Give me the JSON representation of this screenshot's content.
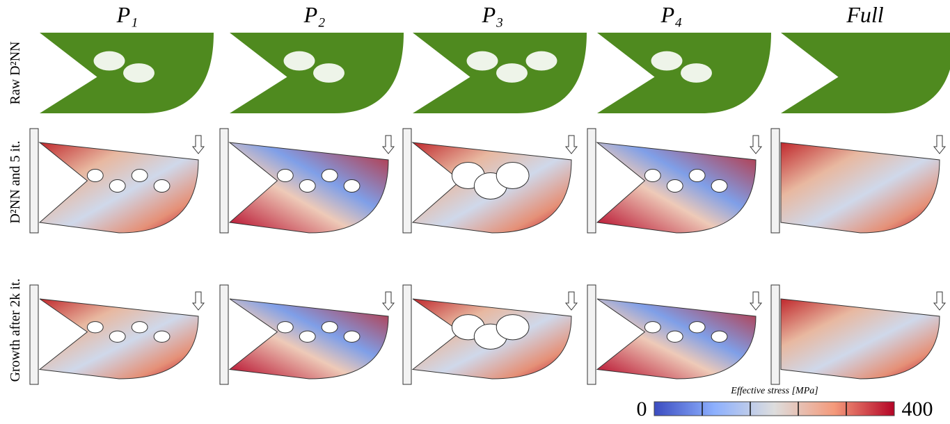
{
  "header": {
    "columns": [
      "P₁",
      "P₂",
      "P₃",
      "P₄",
      "Full"
    ]
  },
  "rows": [
    "Raw D²NN",
    "D²NN and 5 it.",
    "Growth after 2k it."
  ],
  "colorbar": {
    "title": "Effective stress [MPa]",
    "min": 0,
    "max": 400,
    "ticks": [
      80,
      160,
      240,
      320
    ]
  }
}
